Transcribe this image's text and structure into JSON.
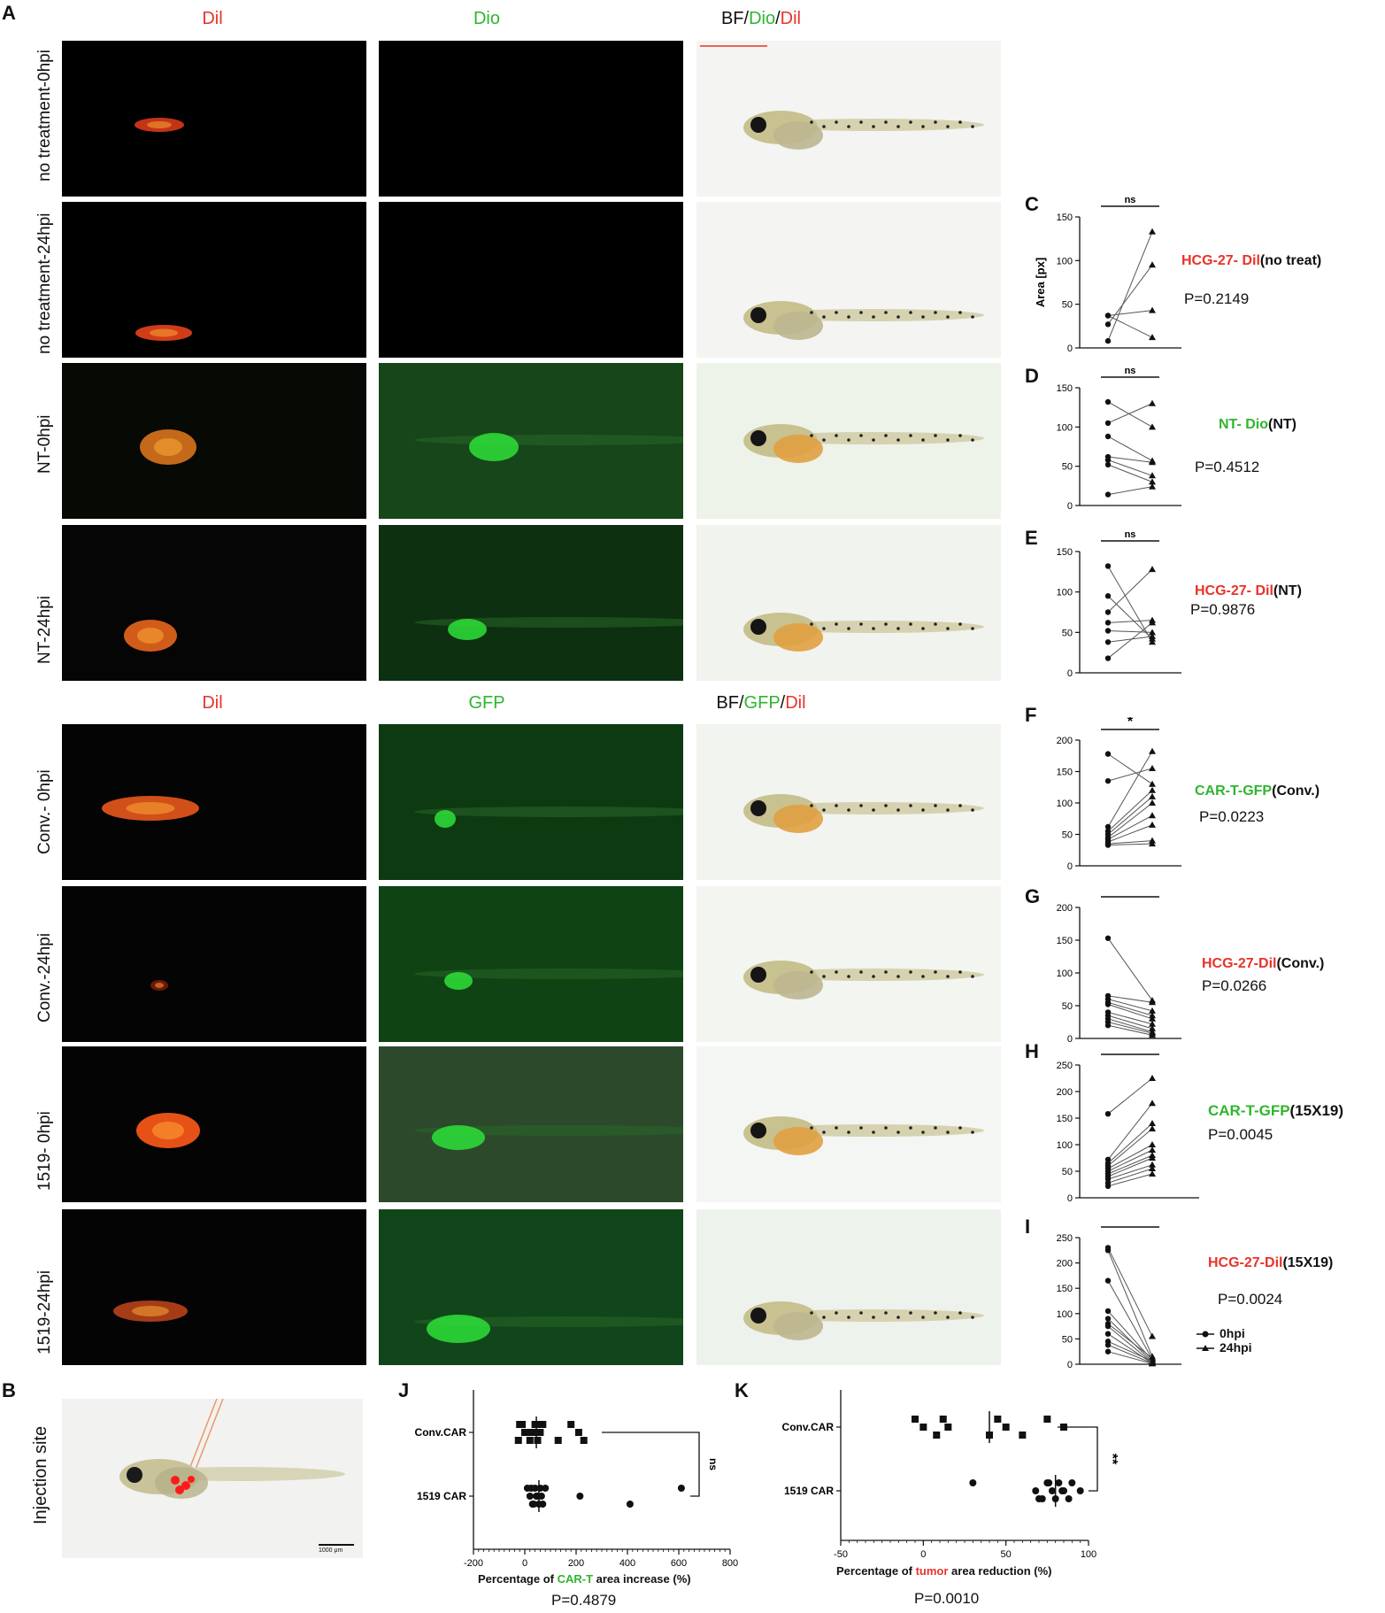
{
  "panels": {
    "A": "A",
    "B": "B",
    "C": "C",
    "D": "D",
    "E": "E",
    "F": "F",
    "G": "G",
    "H": "H",
    "I": "I",
    "J": "J",
    "K": "K"
  },
  "section1": {
    "col1": "Dil",
    "col2": "Dio",
    "col3": {
      "bf": "BF/",
      "c1": "Dio",
      "sep": "/",
      "c2": "Dil"
    },
    "rows": [
      "no treatment-0hpi",
      "no treatment-24hpi",
      "NT-0hpi",
      "NT-24hpi"
    ]
  },
  "section2": {
    "col1": "Dil",
    "col2": "GFP",
    "col3": {
      "bf": "BF/",
      "c1": "GFP",
      "sep": "/",
      "c2": "Dil"
    },
    "rows": [
      "Conv.- 0hpi",
      "Conv.-24hpi",
      "1519- 0hpi",
      "1519-24hpi"
    ]
  },
  "panelB": {
    "label": "Injection site",
    "scalebar": "1000 μm"
  },
  "paired_titles": {
    "C": {
      "a": "HCG-27- Dil",
      "b": "(no treat)",
      "p": "P=0.2149",
      "ylabel": "Area [px]"
    },
    "D": {
      "a": "NT- Dio",
      "b": "(NT)",
      "p": "P=0.4512"
    },
    "E": {
      "a": "HCG-27- Dil",
      "b": "(NT)",
      "p": "P=0.9876"
    },
    "F": {
      "a": "CAR-T-GFP",
      "b": "(Conv.)",
      "p": "P=0.0223"
    },
    "G": {
      "a": "HCG-27-Dil",
      "b": "(Conv.)",
      "p": "P=0.0266"
    },
    "H": {
      "a": "CAR-T-GFP",
      "b": "(15X19)",
      "p": "P=0.0045"
    },
    "I": {
      "a": "HCG-27-Dil",
      "b": "(15X19)",
      "p": "P=0.0024"
    }
  },
  "legend": {
    "s1": "0hpi",
    "s2": "24hpi"
  },
  "panelJ": {
    "xlabel_pre": "Percentage of ",
    "xlabel_hl": "CAR-T",
    "xlabel_post": " area increase (%)",
    "p": "P=0.4879"
  },
  "panelK": {
    "xlabel_pre": "Percentage of ",
    "xlabel_hl": "tumor",
    "xlabel_post": " area reduction (%)",
    "p": "P=0.0010"
  },
  "colors": {
    "red": "#e8332a",
    "green": "#2fb52f"
  },
  "chart_data": [
    {
      "id": "C",
      "type": "scatter",
      "ylabel": "Area [px]",
      "ylim": [
        0,
        150
      ],
      "yticks": [
        0,
        50,
        100,
        150
      ],
      "sig": "ns",
      "pairs": [
        [
          8,
          133
        ],
        [
          27,
          95
        ],
        [
          37,
          43
        ],
        [
          37,
          12
        ]
      ]
    },
    {
      "id": "D",
      "type": "scatter",
      "ylim": [
        0,
        150
      ],
      "yticks": [
        0,
        50,
        100,
        150
      ],
      "sig": "ns",
      "pairs": [
        [
          132,
          100
        ],
        [
          105,
          130
        ],
        [
          88,
          57
        ],
        [
          62,
          55
        ],
        [
          58,
          38
        ],
        [
          52,
          30
        ],
        [
          14,
          24
        ]
      ]
    },
    {
      "id": "E",
      "type": "scatter",
      "ylim": [
        0,
        150
      ],
      "yticks": [
        0,
        50,
        100,
        150
      ],
      "sig": "ns",
      "pairs": [
        [
          132,
          38
        ],
        [
          95,
          42
        ],
        [
          75,
          128
        ],
        [
          62,
          65
        ],
        [
          52,
          50
        ],
        [
          38,
          45
        ],
        [
          18,
          62
        ]
      ]
    },
    {
      "id": "F",
      "type": "scatter",
      "ylim": [
        0,
        200
      ],
      "yticks": [
        0,
        50,
        100,
        150,
        200
      ],
      "sig": "*",
      "pairs": [
        [
          178,
          130
        ],
        [
          135,
          155
        ],
        [
          62,
          182
        ],
        [
          55,
          120
        ],
        [
          50,
          110
        ],
        [
          45,
          100
        ],
        [
          42,
          80
        ],
        [
          38,
          65
        ],
        [
          35,
          40
        ],
        [
          33,
          35
        ]
      ]
    },
    {
      "id": "G",
      "type": "scatter",
      "ylim": [
        0,
        200
      ],
      "yticks": [
        0,
        50,
        100,
        150,
        200
      ],
      "sig": "*",
      "pairs": [
        [
          153,
          58
        ],
        [
          65,
          55
        ],
        [
          60,
          42
        ],
        [
          55,
          35
        ],
        [
          52,
          30
        ],
        [
          40,
          22
        ],
        [
          35,
          15
        ],
        [
          30,
          10
        ],
        [
          25,
          8
        ],
        [
          20,
          5
        ]
      ]
    },
    {
      "id": "H",
      "type": "scatter",
      "ylim": [
        0,
        250
      ],
      "yticks": [
        0,
        50,
        100,
        150,
        200,
        250
      ],
      "sig": "**",
      "pairs": [
        [
          158,
          225
        ],
        [
          72,
          178
        ],
        [
          65,
          140
        ],
        [
          60,
          130
        ],
        [
          55,
          100
        ],
        [
          50,
          90
        ],
        [
          45,
          80
        ],
        [
          40,
          75
        ],
        [
          35,
          62
        ],
        [
          28,
          55
        ],
        [
          22,
          45
        ]
      ]
    },
    {
      "id": "I",
      "type": "scatter",
      "ylim": [
        0,
        250
      ],
      "yticks": [
        0,
        50,
        100,
        150,
        200,
        250
      ],
      "sig": "**",
      "pairs": [
        [
          230,
          55
        ],
        [
          225,
          15
        ],
        [
          165,
          10
        ],
        [
          105,
          8
        ],
        [
          90,
          5
        ],
        [
          80,
          12
        ],
        [
          75,
          3
        ],
        [
          60,
          2
        ],
        [
          45,
          6
        ],
        [
          38,
          2
        ],
        [
          25,
          1
        ]
      ]
    },
    {
      "id": "J",
      "type": "scatter",
      "categories": [
        "Conv.CAR",
        "1519 CAR"
      ],
      "xlim": [
        -200,
        800
      ],
      "xticks": [
        -200,
        0,
        200,
        400,
        600,
        800
      ],
      "sig": "ns",
      "series": [
        {
          "category": "Conv.CAR",
          "marker": "square",
          "values": [
            -20,
            0,
            20,
            40,
            60,
            130,
            180,
            210,
            230,
            -10,
            10,
            50,
            70,
            30,
            -25,
            45
          ]
        },
        {
          "category": "1519 CAR",
          "marker": "circle",
          "values": [
            10,
            20,
            30,
            40,
            50,
            55,
            60,
            65,
            70,
            80,
            45,
            35,
            25,
            215,
            410,
            610
          ]
        }
      ]
    },
    {
      "id": "K",
      "type": "scatter",
      "categories": [
        "Conv.CAR",
        "1519 CAR"
      ],
      "xlim": [
        -50,
        100
      ],
      "xticks": [
        -50,
        0,
        50,
        100
      ],
      "sig": "**",
      "series": [
        {
          "category": "Conv.CAR",
          "marker": "square",
          "values": [
            -5,
            0,
            8,
            12,
            15,
            40,
            45,
            50,
            60,
            75,
            85
          ]
        },
        {
          "category": "1519 CAR",
          "marker": "circle",
          "values": [
            30,
            68,
            72,
            75,
            78,
            80,
            82,
            85,
            88,
            90,
            95,
            70,
            76,
            84
          ]
        }
      ]
    }
  ]
}
